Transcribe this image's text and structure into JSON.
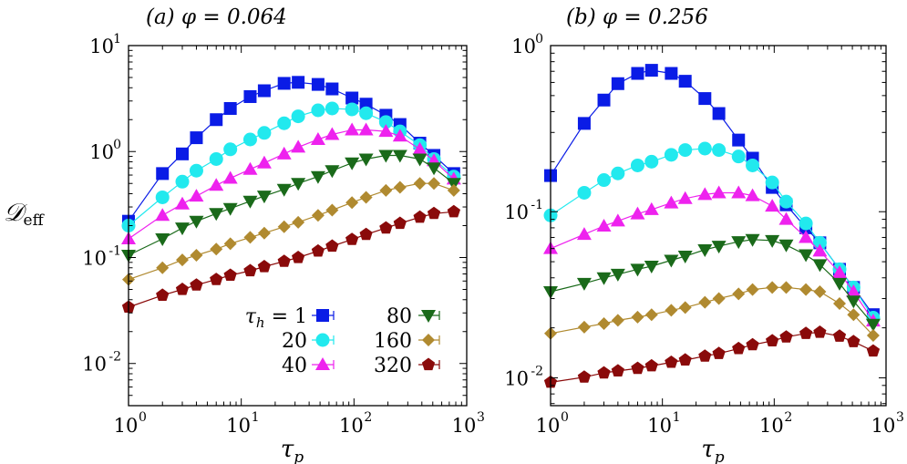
{
  "colors": {
    "th1": "#0a1ce6",
    "th20": "#22e9ee",
    "th40": "#ee22ee",
    "th80": "#1a6a1a",
    "th160": "#b08a30",
    "th320": "#8a0a0a"
  },
  "ylabel": "𝒟eff",
  "legend": {
    "prefix": "τh = ",
    "labels": [
      "1",
      "20",
      "40",
      "80",
      "160",
      "320"
    ]
  },
  "chart_data": [
    {
      "type": "scatter",
      "title": "(a)   φ = 0.064",
      "xlabel": "τp",
      "ylabel": "𝒟eff",
      "x_scale": "log",
      "y_scale": "log",
      "xlim": [
        1,
        1000
      ],
      "ylim": [
        0.004,
        10
      ],
      "x_ticks": [
        {
          "base": "10",
          "exp": "0"
        },
        {
          "base": "10",
          "exp": "1"
        },
        {
          "base": "10",
          "exp": "2"
        },
        {
          "base": "10",
          "exp": "3"
        }
      ],
      "y_ticks": [
        {
          "base": "10",
          "exp": "-2"
        },
        {
          "base": "10",
          "exp": "-1"
        },
        {
          "base": "10",
          "exp": "0"
        },
        {
          "base": "10",
          "exp": "1"
        }
      ],
      "legend": "inside bottom-right",
      "series": [
        {
          "name": "τh = 1",
          "marker": "square",
          "color_key": "th1",
          "x": [
            1,
            2,
            3,
            4,
            6,
            8,
            12,
            16,
            24,
            32,
            48,
            64,
            96,
            128,
            192,
            256,
            384,
            512,
            768
          ],
          "y": [
            0.22,
            0.62,
            0.95,
            1.35,
            2.0,
            2.55,
            3.3,
            3.75,
            4.4,
            4.5,
            4.3,
            3.9,
            3.2,
            2.8,
            2.2,
            1.8,
            1.2,
            0.92,
            0.62
          ]
        },
        {
          "name": "τh = 20",
          "marker": "circle",
          "color_key": "th20",
          "x": [
            1,
            2,
            3,
            4,
            6,
            8,
            12,
            16,
            24,
            32,
            48,
            64,
            96,
            128,
            192,
            256,
            384,
            512,
            768
          ],
          "y": [
            0.2,
            0.37,
            0.52,
            0.66,
            0.85,
            1.05,
            1.3,
            1.5,
            1.85,
            2.15,
            2.45,
            2.55,
            2.5,
            2.3,
            1.9,
            1.55,
            1.15,
            0.85,
            0.58
          ]
        },
        {
          "name": "τh = 40",
          "marker": "triangle-up",
          "color_key": "th40",
          "x": [
            1,
            2,
            3,
            4,
            6,
            8,
            12,
            16,
            24,
            32,
            48,
            64,
            96,
            128,
            192,
            256,
            384,
            512,
            768
          ],
          "y": [
            0.15,
            0.25,
            0.32,
            0.38,
            0.48,
            0.56,
            0.68,
            0.78,
            0.95,
            1.1,
            1.3,
            1.45,
            1.6,
            1.6,
            1.55,
            1.4,
            1.05,
            0.82,
            0.55
          ]
        },
        {
          "name": "80",
          "marker": "triangle-down",
          "color_key": "th80",
          "x": [
            1,
            2,
            3,
            4,
            6,
            8,
            12,
            16,
            24,
            32,
            48,
            64,
            96,
            128,
            192,
            256,
            384,
            512,
            768
          ],
          "y": [
            0.105,
            0.15,
            0.19,
            0.22,
            0.26,
            0.29,
            0.34,
            0.38,
            0.44,
            0.5,
            0.58,
            0.66,
            0.78,
            0.85,
            0.92,
            0.92,
            0.85,
            0.7,
            0.5
          ]
        },
        {
          "name": "160",
          "marker": "diamond",
          "color_key": "th160",
          "x": [
            1,
            2,
            3,
            4,
            6,
            8,
            12,
            16,
            24,
            32,
            48,
            64,
            96,
            128,
            192,
            256,
            384,
            512,
            768
          ],
          "y": [
            0.062,
            0.08,
            0.095,
            0.105,
            0.12,
            0.135,
            0.155,
            0.17,
            0.195,
            0.215,
            0.25,
            0.28,
            0.33,
            0.37,
            0.43,
            0.46,
            0.5,
            0.5,
            0.43
          ]
        },
        {
          "name": "320",
          "marker": "pentagon",
          "color_key": "th320",
          "x": [
            1,
            2,
            3,
            4,
            6,
            8,
            12,
            16,
            24,
            32,
            48,
            64,
            96,
            128,
            192,
            256,
            384,
            512,
            768
          ],
          "y": [
            0.034,
            0.044,
            0.05,
            0.055,
            0.062,
            0.068,
            0.075,
            0.082,
            0.092,
            0.1,
            0.115,
            0.128,
            0.148,
            0.165,
            0.19,
            0.21,
            0.24,
            0.26,
            0.27
          ]
        }
      ]
    },
    {
      "type": "scatter",
      "title": "(b)   φ = 0.256",
      "xlabel": "τp",
      "ylabel": "",
      "x_scale": "log",
      "y_scale": "log",
      "xlim": [
        1,
        1000
      ],
      "ylim": [
        0.0068,
        1
      ],
      "x_ticks": [
        {
          "base": "10",
          "exp": "0"
        },
        {
          "base": "10",
          "exp": "1"
        },
        {
          "base": "10",
          "exp": "2"
        },
        {
          "base": "10",
          "exp": "3"
        }
      ],
      "y_ticks": [
        {
          "base": "10",
          "exp": "-2"
        },
        {
          "base": "10",
          "exp": "-1"
        },
        {
          "base": "10",
          "exp": "0"
        }
      ],
      "series": [
        {
          "name": "τh = 1",
          "marker": "square",
          "color_key": "th1",
          "x": [
            1,
            2,
            3,
            4,
            6,
            8,
            12,
            16,
            24,
            32,
            48,
            64,
            96,
            128,
            192,
            256,
            384,
            512,
            768
          ],
          "y": [
            0.165,
            0.34,
            0.47,
            0.59,
            0.68,
            0.71,
            0.68,
            0.61,
            0.48,
            0.39,
            0.27,
            0.21,
            0.14,
            0.11,
            0.08,
            0.065,
            0.045,
            0.035,
            0.024
          ]
        },
        {
          "name": "τh = 20",
          "marker": "circle",
          "color_key": "th20",
          "x": [
            1,
            2,
            3,
            4,
            6,
            8,
            12,
            16,
            24,
            32,
            48,
            64,
            96,
            128,
            192,
            256,
            384,
            512,
            768
          ],
          "y": [
            0.095,
            0.13,
            0.155,
            0.17,
            0.19,
            0.2,
            0.22,
            0.235,
            0.24,
            0.235,
            0.215,
            0.19,
            0.15,
            0.115,
            0.085,
            0.065,
            0.045,
            0.035,
            0.023
          ]
        },
        {
          "name": "τh = 40",
          "marker": "triangle-up",
          "color_key": "th40",
          "x": [
            1,
            2,
            3,
            4,
            6,
            8,
            12,
            16,
            24,
            32,
            48,
            64,
            96,
            128,
            192,
            256,
            384,
            512,
            768
          ],
          "y": [
            0.06,
            0.073,
            0.082,
            0.088,
            0.097,
            0.103,
            0.113,
            0.12,
            0.127,
            0.13,
            0.13,
            0.125,
            0.108,
            0.09,
            0.07,
            0.058,
            0.043,
            0.033,
            0.022
          ]
        },
        {
          "name": "80",
          "marker": "triangle-down",
          "color_key": "th80",
          "x": [
            1,
            2,
            3,
            4,
            6,
            8,
            12,
            16,
            24,
            32,
            48,
            64,
            96,
            128,
            192,
            256,
            384,
            512,
            768
          ],
          "y": [
            0.033,
            0.037,
            0.04,
            0.042,
            0.045,
            0.047,
            0.051,
            0.054,
            0.059,
            0.062,
            0.066,
            0.068,
            0.067,
            0.063,
            0.055,
            0.048,
            0.037,
            0.029,
            0.021
          ]
        },
        {
          "name": "160",
          "marker": "diamond",
          "color_key": "th160",
          "x": [
            1,
            2,
            3,
            4,
            6,
            8,
            12,
            16,
            24,
            32,
            48,
            64,
            96,
            128,
            192,
            256,
            384,
            512,
            768
          ],
          "y": [
            0.0185,
            0.0202,
            0.0212,
            0.0222,
            0.0232,
            0.024,
            0.0255,
            0.0265,
            0.0285,
            0.03,
            0.032,
            0.034,
            0.035,
            0.035,
            0.034,
            0.033,
            0.028,
            0.024,
            0.018
          ]
        },
        {
          "name": "320",
          "marker": "pentagon",
          "color_key": "th320",
          "x": [
            1,
            2,
            3,
            4,
            6,
            8,
            12,
            16,
            24,
            32,
            48,
            64,
            96,
            128,
            192,
            256,
            384,
            512,
            768
          ],
          "y": [
            0.0094,
            0.0101,
            0.0107,
            0.011,
            0.0114,
            0.0118,
            0.0124,
            0.0128,
            0.0135,
            0.014,
            0.015,
            0.0158,
            0.0167,
            0.0176,
            0.0185,
            0.0188,
            0.0178,
            0.0165,
            0.0145
          ]
        }
      ]
    }
  ]
}
